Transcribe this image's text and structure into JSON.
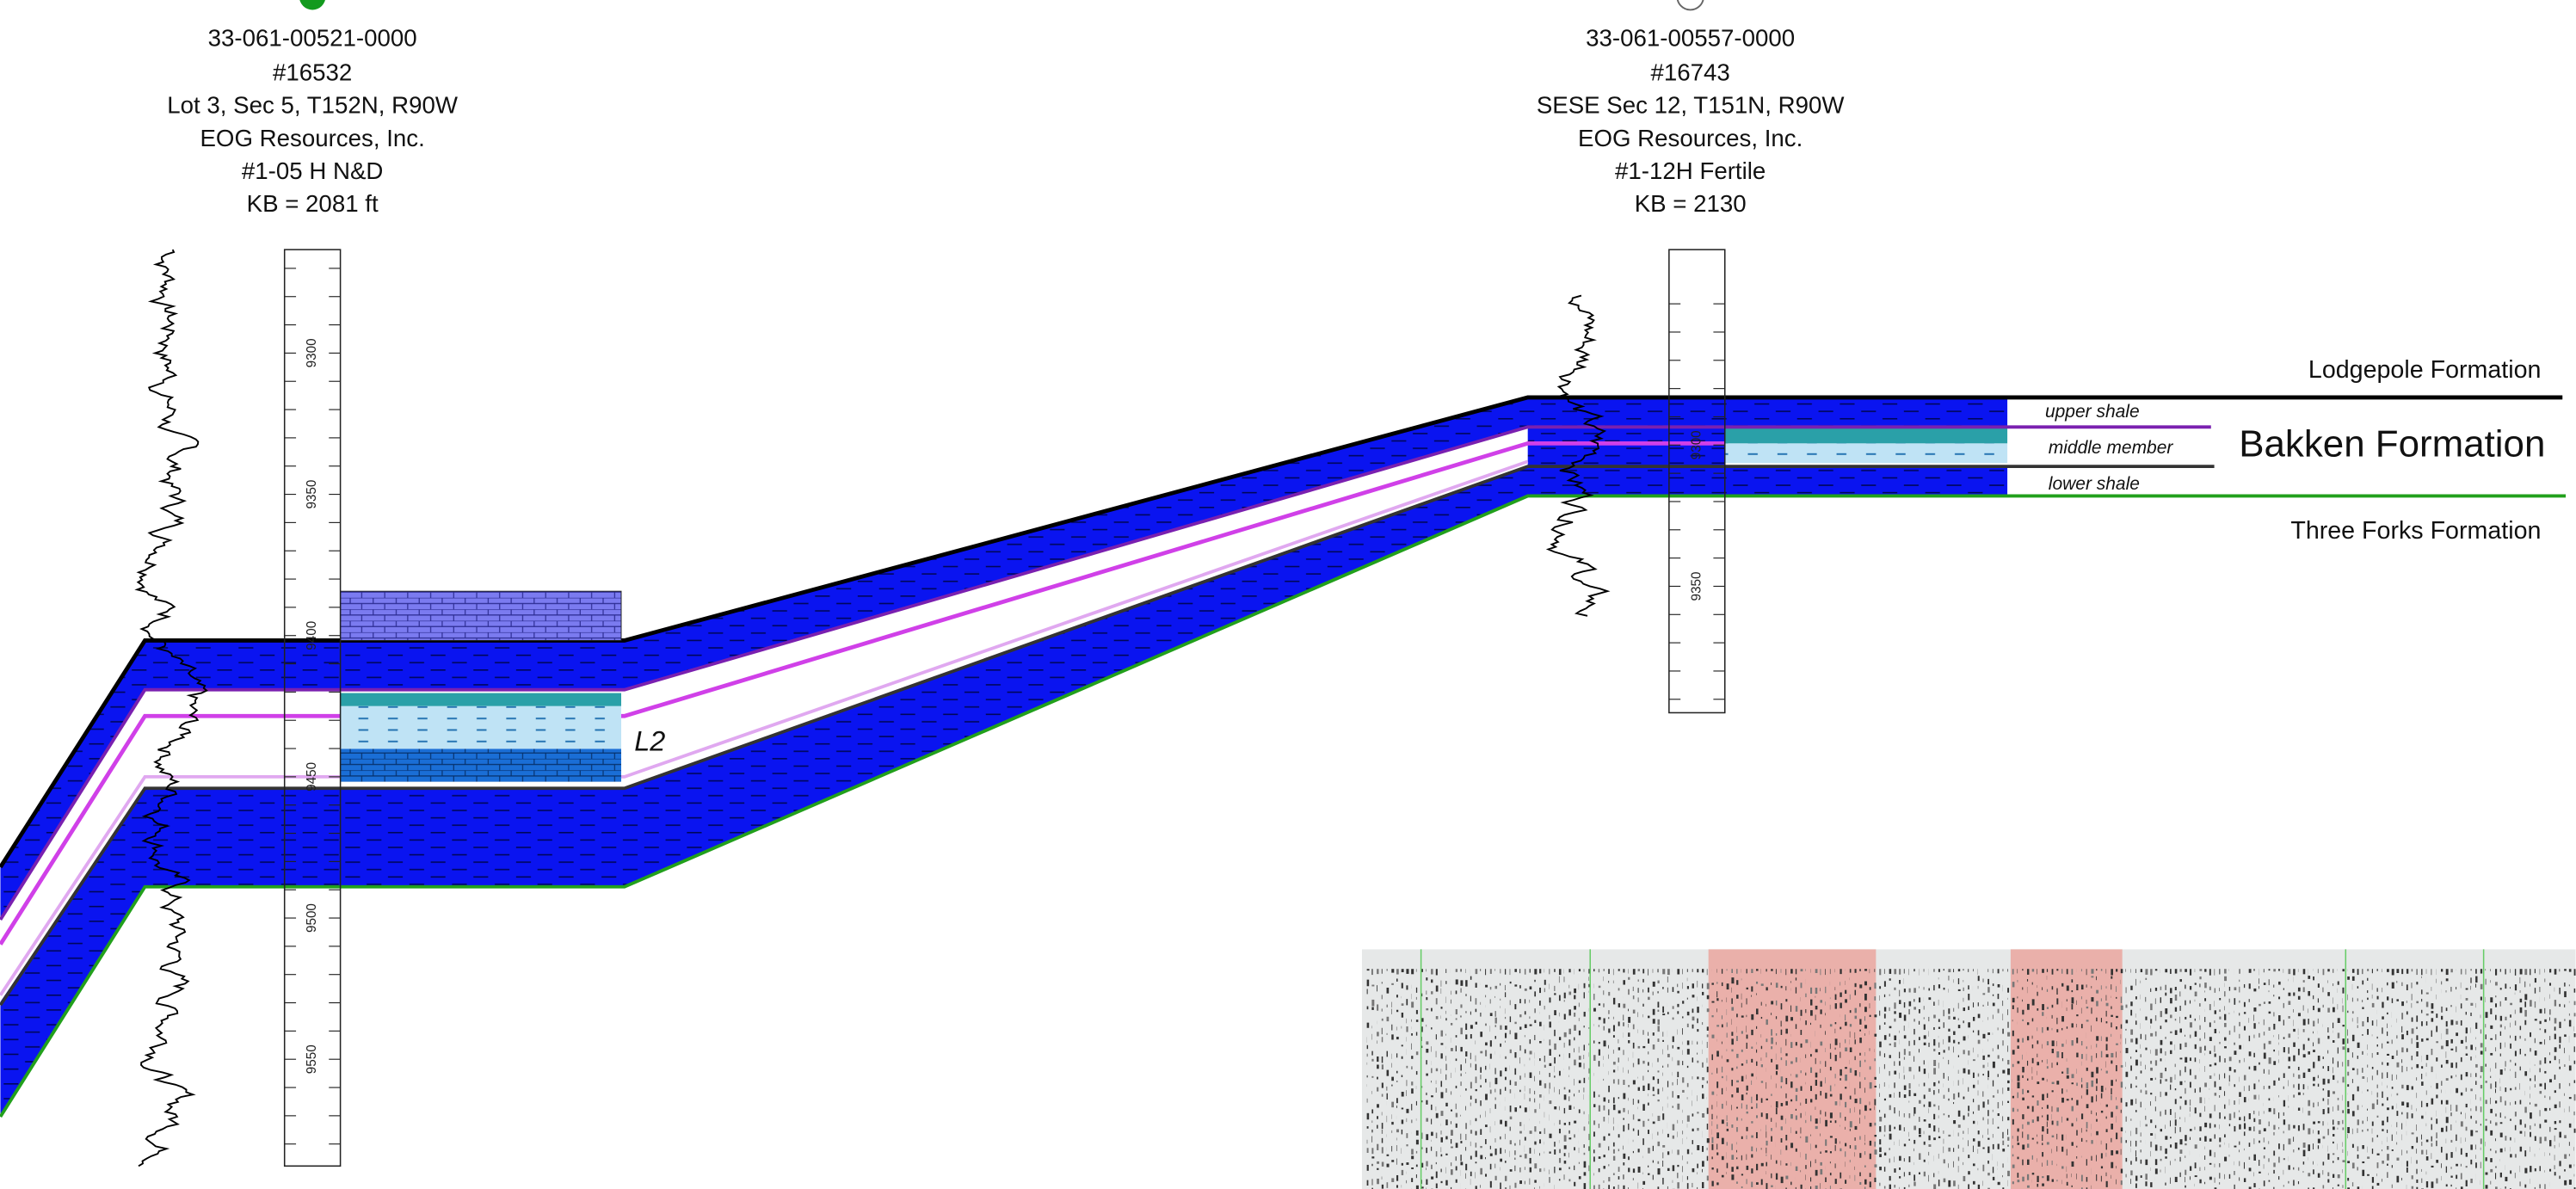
{
  "wells": [
    {
      "api": "33-061-00521-0000",
      "permit": "#16532",
      "location": "Lot 3, Sec 5, T152N, R90W",
      "operator": "EOG Resources, Inc.",
      "well_name": "#1-05 H N&D",
      "kb": "KB = 2081 ft",
      "depth_labels": [
        "9300",
        "9350",
        "9400",
        "9450",
        "9500",
        "9550"
      ]
    },
    {
      "api": "33-061-00557-0000",
      "permit": "#16743",
      "location": "SESE Sec 12, T151N, R90W",
      "operator": "EOG Resources, Inc.",
      "well_name": "#1-12H Fertile",
      "kb": "KB = 2130",
      "depth_labels": [
        "9300",
        "9350"
      ]
    }
  ],
  "formations": {
    "lodgepole": "Lodgepole Formation",
    "upper_shale": "upper shale",
    "middle_member": "middle member",
    "lower_shale": "lower shale",
    "bakken": "Bakken Formation",
    "three_forks": "Three Forks Formation"
  },
  "annotations": {
    "l2": "L2"
  }
}
